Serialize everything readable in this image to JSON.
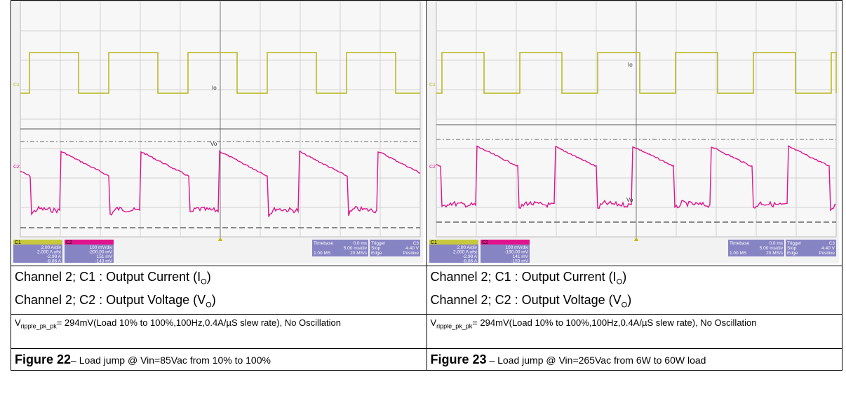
{
  "figures": [
    {
      "scope": {
        "c1": {
          "tag": "C1",
          "lines": [
            "2.00 A/div",
            "2.000 A ofst",
            "-2.98 A",
            "-8.86 A"
          ]
        },
        "c2": {
          "tag": "C2",
          "lines": [
            "100 mV/div",
            "-200.00 mV",
            "151 mV",
            "-143 mV"
          ]
        },
        "timebase": [
          "Timebase",
          "0.0 ms",
          "5.00 ms/div",
          "1.00 MS",
          "20 MS/s"
        ],
        "trigger": [
          "Trigger",
          "C3",
          "Stop",
          "4.40 V",
          "Edge",
          "Positive"
        ],
        "trace_io": "Io",
        "trace_vo": "Vo"
      },
      "captions": [
        {
          "text": "Channel 2; C1 : Output Current (I",
          "sub": "O",
          "end": ")"
        },
        {
          "text": "Channel 2; C2 : Output Voltage (V",
          "sub": "O",
          "end": ")"
        }
      ],
      "ripple": {
        "text": "V",
        "sub": "ripple_pk_pk",
        "end": "= 294mV(Load 10% to 100%,100Hz,0.4A/µS slew rate), No Oscillation"
      },
      "figure": {
        "label": "Figure 22",
        "text": "– Load jump @ Vin=85Vac from 10% to 100%"
      }
    },
    {
      "scope": {
        "c1": {
          "tag": "C1",
          "lines": [
            "2.00 A/div",
            "2.000 A ofst",
            "-2.98 A",
            "-8.86 A"
          ]
        },
        "c2": {
          "tag": "C2",
          "lines": [
            "100 mV/div",
            "-190.00 mV",
            "141 mV",
            "-153 mV"
          ]
        },
        "timebase": [
          "Timebase",
          "0.0 ms",
          "5.00 ms/div",
          "1.00 MS",
          "20 MS/s"
        ],
        "trigger": [
          "Trigger",
          "C3",
          "Stop",
          "4.40 V",
          "Edge",
          "Positive"
        ],
        "trace_io": "Io",
        "trace_vo": "Vo"
      },
      "captions": [
        {
          "text": "Channel 2; C1 : Output Current (I",
          "sub": "O",
          "end": ")"
        },
        {
          "text": "Channel 2; C2 : Output Voltage (V",
          "sub": "O",
          "end": ")"
        }
      ],
      "ripple": {
        "text": "V",
        "sub": "ripple_pk_pk",
        "end": "= 294mV(Load 10% to 100%,100Hz,0.4A/µS slew rate), No Oscillation"
      },
      "figure": {
        "label": "Figure 23",
        "text": " – Load jump @ Vin=265Vac from 6W to 60W load"
      }
    }
  ]
}
